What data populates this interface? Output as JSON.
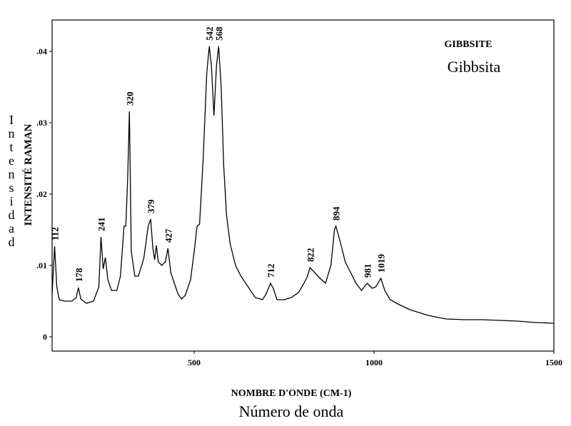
{
  "chart_data": {
    "type": "line",
    "title": "GIBBSITE",
    "subtitle": "Gibbsita",
    "x_label": "NOMBRE D'ONDE (CM-1)",
    "x_label_secondary": "Número de onda",
    "y_label": "INTENSITÉ RAMAN",
    "y_label_secondary": "Intensidad",
    "xlim": [
      105,
      1500
    ],
    "ylim": [
      -0.002,
      0.0444
    ],
    "xticks": [
      500,
      1000,
      1500
    ],
    "yticks": [
      0,
      {
        "value": 0.01,
        "label": ".01"
      },
      {
        "value": 0.02,
        "label": ".02"
      },
      {
        "value": 0.03,
        "label": ".03"
      },
      {
        "value": 0.04,
        "label": ".04"
      }
    ],
    "peak_labels": [
      112,
      178,
      241,
      320,
      379,
      427,
      542,
      568,
      712,
      822,
      894,
      981,
      1019
    ],
    "series": [
      {
        "color": "#000000",
        "x": [
          105,
          112,
          118,
          125,
          140,
          160,
          172,
          178,
          185,
          200,
          220,
          235,
          241,
          247,
          253,
          260,
          270,
          285,
          295,
          305,
          310,
          315,
          320,
          325,
          335,
          345,
          360,
          372,
          379,
          385,
          390,
          395,
          400,
          410,
          420,
          427,
          435,
          445,
          455,
          465,
          475,
          490,
          500,
          508,
          515,
          525,
          535,
          542,
          548,
          555,
          562,
          568,
          575,
          582,
          590,
          600,
          615,
          630,
          650,
          670,
          690,
          700,
          712,
          720,
          730,
          750,
          770,
          790,
          805,
          815,
          822,
          835,
          850,
          865,
          880,
          890,
          894,
          905,
          920,
          935,
          950,
          965,
          981,
          995,
          1005,
          1019,
          1030,
          1045,
          1070,
          1100,
          1150,
          1200,
          1250,
          1300,
          1350,
          1400,
          1450,
          1500
        ],
        "values": [
          0.006,
          0.0127,
          0.007,
          0.0052,
          0.005,
          0.005,
          0.0055,
          0.0069,
          0.0053,
          0.0047,
          0.005,
          0.007,
          0.014,
          0.0095,
          0.0111,
          0.008,
          0.0065,
          0.0065,
          0.0085,
          0.0155,
          0.0155,
          0.022,
          0.0316,
          0.012,
          0.0085,
          0.0085,
          0.011,
          0.0155,
          0.0165,
          0.0125,
          0.0108,
          0.0128,
          0.0105,
          0.01,
          0.0105,
          0.0124,
          0.009,
          0.0075,
          0.006,
          0.0053,
          0.0058,
          0.008,
          0.012,
          0.0155,
          0.0158,
          0.025,
          0.037,
          0.0407,
          0.038,
          0.031,
          0.038,
          0.0407,
          0.035,
          0.024,
          0.017,
          0.013,
          0.01,
          0.0085,
          0.007,
          0.0055,
          0.0052,
          0.006,
          0.0075,
          0.0068,
          0.0052,
          0.0052,
          0.0055,
          0.0062,
          0.0075,
          0.0085,
          0.0097,
          0.009,
          0.0082,
          0.0075,
          0.01,
          0.015,
          0.0155,
          0.0135,
          0.0105,
          0.009,
          0.0075,
          0.0065,
          0.0075,
          0.0068,
          0.007,
          0.0082,
          0.0065,
          0.0052,
          0.0045,
          0.0038,
          0.003,
          0.0025,
          0.0024,
          0.0024,
          0.0023,
          0.0022,
          0.002,
          0.0019
        ]
      }
    ]
  }
}
